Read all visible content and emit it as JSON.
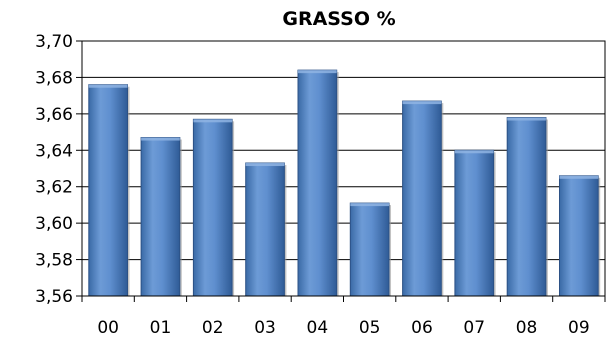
{
  "chart_data": {
    "type": "bar",
    "title": "GRASSO %",
    "xlabel": "",
    "ylabel": "",
    "categories": [
      "00",
      "01",
      "02",
      "03",
      "04",
      "05",
      "06",
      "07",
      "08",
      "09"
    ],
    "values": [
      3.676,
      3.647,
      3.657,
      3.633,
      3.684,
      3.611,
      3.667,
      3.64,
      3.658,
      3.626
    ],
    "ylim": [
      3.56,
      3.7
    ],
    "yticks": [
      "3,70",
      "3,68",
      "3,66",
      "3,64",
      "3,62",
      "3,60",
      "3,58",
      "3,56"
    ],
    "grid": true,
    "legend": "none",
    "bar_color": "#4f81bd"
  }
}
